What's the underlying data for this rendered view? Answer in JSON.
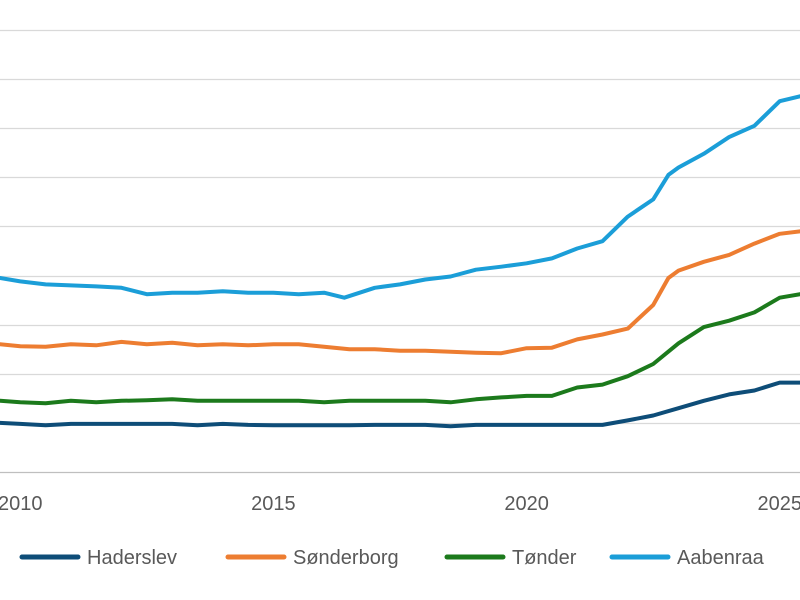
{
  "chart_data": {
    "type": "line",
    "title": "",
    "xlabel": "",
    "ylabel": "",
    "x_ticks": [
      {
        "value": 2010,
        "label": "2010"
      },
      {
        "value": 2015,
        "label": "2015"
      },
      {
        "value": 2020,
        "label": "2020"
      },
      {
        "value": 2025,
        "label": "2025"
      }
    ],
    "xlim": [
      2009.6,
      2025.4
    ],
    "ylim": [
      0,
      9
    ],
    "grid": true,
    "gridline_count": 10,
    "legend_position": "bottom",
    "colors": {
      "grid": "#d9d9d9",
      "axis": "#bfbfbf",
      "text": "#595959",
      "background": "#ffffff"
    },
    "series": [
      {
        "name": "Haderslev",
        "color": "#0e4d78",
        "points": [
          [
            2009.6,
            1.0
          ],
          [
            2010.0,
            0.98
          ],
          [
            2010.5,
            0.95
          ],
          [
            2011.0,
            0.98
          ],
          [
            2011.5,
            0.98
          ],
          [
            2012.0,
            0.98
          ],
          [
            2012.5,
            0.98
          ],
          [
            2013.0,
            0.98
          ],
          [
            2013.5,
            0.95
          ],
          [
            2014.0,
            0.98
          ],
          [
            2014.5,
            0.96
          ],
          [
            2015.0,
            0.95
          ],
          [
            2015.5,
            0.95
          ],
          [
            2016.0,
            0.95
          ],
          [
            2016.5,
            0.95
          ],
          [
            2017.0,
            0.96
          ],
          [
            2017.5,
            0.96
          ],
          [
            2018.0,
            0.96
          ],
          [
            2018.5,
            0.93
          ],
          [
            2019.0,
            0.96
          ],
          [
            2019.5,
            0.96
          ],
          [
            2020.0,
            0.96
          ],
          [
            2020.5,
            0.96
          ],
          [
            2021.0,
            0.96
          ],
          [
            2021.5,
            0.96
          ],
          [
            2022.0,
            1.05
          ],
          [
            2022.5,
            1.15
          ],
          [
            2023.0,
            1.3
          ],
          [
            2023.5,
            1.45
          ],
          [
            2024.0,
            1.58
          ],
          [
            2024.5,
            1.66
          ],
          [
            2025.0,
            1.82
          ],
          [
            2025.4,
            1.82
          ]
        ]
      },
      {
        "name": "Sønderborg",
        "color": "#ed7d31",
        "points": [
          [
            2009.6,
            2.6
          ],
          [
            2010.0,
            2.56
          ],
          [
            2010.5,
            2.55
          ],
          [
            2011.0,
            2.6
          ],
          [
            2011.5,
            2.58
          ],
          [
            2012.0,
            2.65
          ],
          [
            2012.5,
            2.6
          ],
          [
            2013.0,
            2.63
          ],
          [
            2013.5,
            2.58
          ],
          [
            2014.0,
            2.6
          ],
          [
            2014.5,
            2.58
          ],
          [
            2015.0,
            2.6
          ],
          [
            2015.5,
            2.6
          ],
          [
            2016.0,
            2.55
          ],
          [
            2016.5,
            2.5
          ],
          [
            2017.0,
            2.5
          ],
          [
            2017.5,
            2.47
          ],
          [
            2018.0,
            2.47
          ],
          [
            2018.5,
            2.45
          ],
          [
            2019.0,
            2.43
          ],
          [
            2019.5,
            2.42
          ],
          [
            2020.0,
            2.52
          ],
          [
            2020.5,
            2.53
          ],
          [
            2021.0,
            2.7
          ],
          [
            2021.5,
            2.8
          ],
          [
            2022.0,
            2.92
          ],
          [
            2022.5,
            3.4
          ],
          [
            2022.8,
            3.95
          ],
          [
            2023.0,
            4.1
          ],
          [
            2023.5,
            4.28
          ],
          [
            2024.0,
            4.42
          ],
          [
            2024.5,
            4.65
          ],
          [
            2025.0,
            4.85
          ],
          [
            2025.4,
            4.9
          ]
        ]
      },
      {
        "name": "Tønder",
        "color": "#1c7a1c",
        "points": [
          [
            2009.6,
            1.45
          ],
          [
            2010.0,
            1.42
          ],
          [
            2010.5,
            1.4
          ],
          [
            2011.0,
            1.45
          ],
          [
            2011.5,
            1.42
          ],
          [
            2012.0,
            1.45
          ],
          [
            2012.5,
            1.46
          ],
          [
            2013.0,
            1.48
          ],
          [
            2013.5,
            1.45
          ],
          [
            2014.0,
            1.45
          ],
          [
            2014.5,
            1.45
          ],
          [
            2015.0,
            1.45
          ],
          [
            2015.5,
            1.45
          ],
          [
            2016.0,
            1.42
          ],
          [
            2016.5,
            1.45
          ],
          [
            2017.0,
            1.45
          ],
          [
            2017.5,
            1.45
          ],
          [
            2018.0,
            1.45
          ],
          [
            2018.5,
            1.42
          ],
          [
            2019.0,
            1.48
          ],
          [
            2019.5,
            1.52
          ],
          [
            2020.0,
            1.55
          ],
          [
            2020.5,
            1.55
          ],
          [
            2021.0,
            1.72
          ],
          [
            2021.5,
            1.78
          ],
          [
            2022.0,
            1.95
          ],
          [
            2022.5,
            2.2
          ],
          [
            2023.0,
            2.62
          ],
          [
            2023.5,
            2.95
          ],
          [
            2024.0,
            3.08
          ],
          [
            2024.5,
            3.25
          ],
          [
            2025.0,
            3.55
          ],
          [
            2025.4,
            3.62
          ]
        ]
      },
      {
        "name": "Aabenraa",
        "color": "#1b9ed8",
        "points": [
          [
            2009.6,
            3.95
          ],
          [
            2010.0,
            3.88
          ],
          [
            2010.5,
            3.82
          ],
          [
            2011.0,
            3.8
          ],
          [
            2011.5,
            3.78
          ],
          [
            2012.0,
            3.75
          ],
          [
            2012.5,
            3.62
          ],
          [
            2013.0,
            3.65
          ],
          [
            2013.5,
            3.65
          ],
          [
            2014.0,
            3.68
          ],
          [
            2014.5,
            3.65
          ],
          [
            2015.0,
            3.65
          ],
          [
            2015.5,
            3.62
          ],
          [
            2016.0,
            3.65
          ],
          [
            2016.4,
            3.55
          ],
          [
            2017.0,
            3.75
          ],
          [
            2017.5,
            3.82
          ],
          [
            2018.0,
            3.92
          ],
          [
            2018.5,
            3.98
          ],
          [
            2019.0,
            4.12
          ],
          [
            2019.5,
            4.18
          ],
          [
            2020.0,
            4.25
          ],
          [
            2020.5,
            4.35
          ],
          [
            2021.0,
            4.55
          ],
          [
            2021.5,
            4.7
          ],
          [
            2022.0,
            5.2
          ],
          [
            2022.5,
            5.55
          ],
          [
            2022.8,
            6.05
          ],
          [
            2023.0,
            6.2
          ],
          [
            2023.5,
            6.48
          ],
          [
            2024.0,
            6.82
          ],
          [
            2024.5,
            7.05
          ],
          [
            2025.0,
            7.55
          ],
          [
            2025.4,
            7.65
          ]
        ]
      }
    ]
  }
}
